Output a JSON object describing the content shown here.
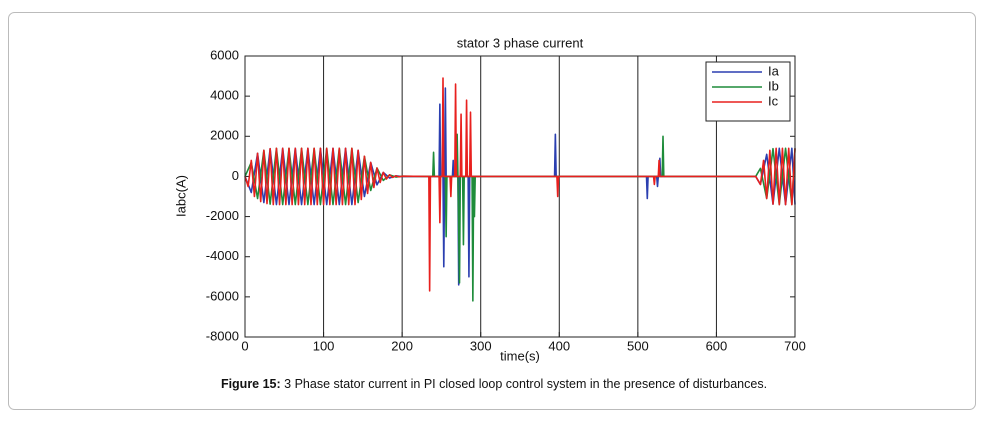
{
  "chart_data": {
    "type": "line",
    "title": "stator 3 phase current",
    "x_label": "time(s)",
    "y_label": "Iabc(A)",
    "xlim": [
      0,
      700
    ],
    "xticks": [
      0,
      100,
      200,
      300,
      400,
      500,
      600,
      700
    ],
    "ylim": [
      -8000,
      6000
    ],
    "yticks": [
      -8000,
      -6000,
      -4000,
      -2000,
      0,
      2000,
      4000,
      6000
    ],
    "grid": "x",
    "legend": "upper right",
    "series": [
      {
        "name": "Ia",
        "color": "#2b3fb0",
        "x": [
          0,
          8,
          16,
          24,
          32,
          40,
          48,
          56,
          64,
          72,
          80,
          88,
          96,
          104,
          112,
          120,
          128,
          136,
          144,
          152,
          160,
          168,
          176,
          184,
          192,
          200,
          230,
          247,
          248,
          249,
          252,
          253,
          254,
          255,
          256,
          264,
          265,
          266,
          271,
          272,
          273,
          284,
          285,
          286,
          394,
          395,
          396,
          511,
          512,
          513,
          524,
          525,
          526,
          527,
          528,
          529,
          650,
          656,
          664,
          672,
          680,
          688,
          696,
          700
        ],
        "values": [
          0,
          -800,
          1150,
          -1300,
          1380,
          -1400,
          1400,
          -1400,
          1400,
          -1400,
          1400,
          -1400,
          1400,
          -1400,
          1400,
          -1400,
          1400,
          -1400,
          1300,
          -1000,
          700,
          -420,
          200,
          -80,
          30,
          -10,
          0,
          0,
          3600,
          0,
          0,
          -4500,
          0,
          4400,
          0,
          0,
          800,
          0,
          0,
          -5400,
          0,
          0,
          -5000,
          0,
          0,
          2100,
          0,
          0,
          -1100,
          0,
          0,
          -500,
          0,
          0,
          900,
          0,
          0,
          -400,
          1100,
          -1380,
          1400,
          -1400,
          1400,
          -1400
        ]
      },
      {
        "name": "Ib",
        "color": "#1e8c3a",
        "x": [
          0,
          8,
          16,
          24,
          32,
          40,
          48,
          56,
          64,
          72,
          80,
          88,
          96,
          104,
          112,
          120,
          128,
          136,
          144,
          152,
          160,
          168,
          176,
          184,
          192,
          200,
          230,
          239,
          240,
          241,
          255,
          256,
          257,
          269,
          270,
          271,
          273,
          274,
          277,
          278,
          279,
          289,
          290,
          291,
          292,
          293,
          531,
          532,
          533,
          650,
          656,
          664,
          672,
          680,
          688,
          696,
          700
        ],
        "values": [
          0,
          700,
          -1100,
          1300,
          -1380,
          1400,
          -1400,
          1400,
          -1400,
          1400,
          -1400,
          1400,
          -1400,
          1400,
          -1400,
          1400,
          -1400,
          1400,
          -1300,
          1000,
          -700,
          420,
          -200,
          80,
          -30,
          10,
          0,
          0,
          1200,
          0,
          0,
          -3000,
          0,
          0,
          2100,
          0,
          -5300,
          0,
          0,
          -3400,
          0,
          0,
          -6200,
          0,
          -2000,
          0,
          0,
          2000,
          0,
          0,
          400,
          -1100,
          1380,
          -1400,
          1400,
          -1400,
          1400
        ]
      },
      {
        "name": "Ic",
        "color": "#e8201e",
        "x": [
          0,
          4,
          8,
          12,
          16,
          20,
          24,
          28,
          32,
          36,
          40,
          44,
          48,
          52,
          56,
          60,
          64,
          68,
          72,
          76,
          80,
          84,
          88,
          92,
          96,
          100,
          104,
          108,
          112,
          116,
          120,
          124,
          128,
          132,
          136,
          140,
          144,
          148,
          152,
          156,
          160,
          164,
          168,
          172,
          176,
          180,
          184,
          188,
          192,
          196,
          200,
          230,
          234,
          235,
          236,
          247,
          248,
          249,
          251,
          252,
          253,
          261,
          262,
          263,
          267,
          268,
          269,
          274,
          275,
          276,
          281,
          282,
          283,
          286,
          287,
          288,
          397,
          398,
          399,
          520,
          521,
          522,
          526,
          527,
          528,
          650,
          656,
          660,
          664,
          668,
          672,
          676,
          680,
          684,
          688,
          692,
          696,
          700
        ],
        "values": [
          0,
          -500,
          800,
          -1000,
          1150,
          -1250,
          1300,
          -1350,
          1380,
          -1400,
          1400,
          -1400,
          1400,
          -1400,
          1400,
          -1400,
          1400,
          -1400,
          1400,
          -1400,
          1400,
          -1400,
          1400,
          -1400,
          1400,
          -1400,
          1400,
          -1400,
          1400,
          -1400,
          1400,
          -1400,
          1400,
          -1400,
          1400,
          -1400,
          1300,
          -1150,
          1000,
          -850,
          700,
          -550,
          420,
          -300,
          200,
          -130,
          80,
          -50,
          30,
          -20,
          10,
          0,
          0,
          -5700,
          0,
          0,
          -2300,
          0,
          0,
          4900,
          0,
          0,
          -1000,
          0,
          0,
          4600,
          0,
          0,
          3100,
          0,
          0,
          3800,
          0,
          0,
          3200,
          0,
          0,
          -1000,
          0,
          0,
          -400,
          0,
          0,
          800,
          0,
          0,
          -400,
          800,
          -1100,
          1300,
          -1380,
          1400,
          -1400,
          1400,
          -1400,
          1400,
          -1400,
          1400
        ]
      }
    ]
  },
  "caption": {
    "label": "Figure 15:",
    "text": " 3 Phase stator current in PI closed loop control system in the presence of disturbances."
  }
}
